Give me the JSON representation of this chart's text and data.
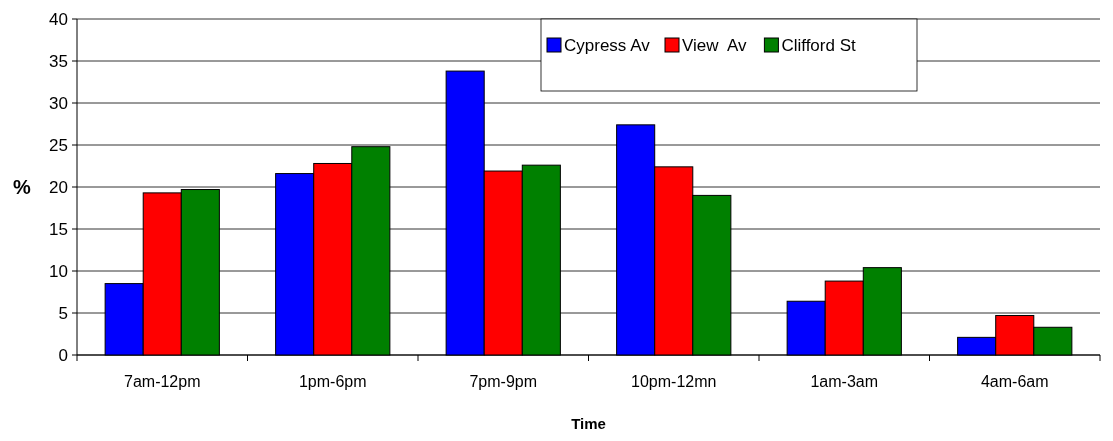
{
  "chart_data": {
    "type": "bar",
    "xlabel": "Time",
    "ylabel": "%",
    "categories": [
      "7am-12pm",
      "1pm-6pm",
      "7pm-9pm",
      "10pm-12mn",
      "1am-3am",
      "4am-6am"
    ],
    "series": [
      {
        "name": "Cypress Av",
        "color": "#0000ff",
        "values": [
          8.5,
          21.6,
          33.8,
          27.4,
          6.4,
          2.1
        ]
      },
      {
        "name": "View  Av",
        "color": "#ff0000",
        "values": [
          19.3,
          22.8,
          21.9,
          22.4,
          8.8,
          4.7
        ]
      },
      {
        "name": "Clifford St",
        "color": "#008000",
        "values": [
          19.7,
          24.8,
          22.6,
          19.0,
          10.4,
          3.3
        ]
      }
    ],
    "ylim": [
      0,
      40
    ],
    "yticks": [
      0,
      5,
      10,
      15,
      20,
      25,
      30,
      35,
      40
    ],
    "grid": "y",
    "legend": "top"
  }
}
